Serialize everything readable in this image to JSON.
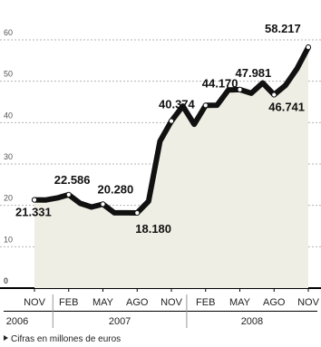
{
  "chart_data": {
    "type": "area",
    "title": "",
    "xlabel": "",
    "ylabel": "",
    "ylim": [
      0,
      60
    ],
    "yticks": [
      0,
      10,
      20,
      30,
      40,
      50,
      60
    ],
    "ytick_labels": [
      "0",
      "10",
      "20",
      "30",
      "40",
      "50",
      "60"
    ],
    "grid": true,
    "x_months": [
      "2006-11",
      "2006-12",
      "2007-01",
      "2007-02",
      "2007-03",
      "2007-04",
      "2007-05",
      "2007-06",
      "2007-07",
      "2007-08",
      "2007-09",
      "2007-10",
      "2007-11",
      "2007-12",
      "2008-01",
      "2008-02",
      "2008-03",
      "2008-04",
      "2008-05",
      "2008-06",
      "2008-07",
      "2008-08",
      "2008-09",
      "2008-10",
      "2008-11"
    ],
    "series": [
      {
        "values": [
          21.331,
          21.3,
          21.8,
          22.586,
          20.5,
          19.6,
          20.28,
          18.2,
          18.2,
          18.18,
          21.0,
          35.5,
          40.374,
          44.0,
          39.6,
          44.17,
          44.2,
          47.9,
          47.981,
          47.1,
          49.6,
          46.741,
          49.0,
          53.0,
          58.217
        ]
      }
    ],
    "month_ticks": [
      "NOV",
      "FEB",
      "MAY",
      "AGO",
      "NOV",
      "FEB",
      "MAY",
      "AGO",
      "NOV"
    ],
    "years": [
      "2006",
      "2007",
      "2008"
    ],
    "data_labels": [
      "21.331",
      "22.586",
      "20.280",
      "18.180",
      "40.374",
      "44.170",
      "47.981",
      "46.741",
      "58.217"
    ],
    "colors": {
      "line": "#111111",
      "area": "#efeee4",
      "grid": "#b4b4b4"
    }
  },
  "footnote": "Cifras en millones de euros"
}
